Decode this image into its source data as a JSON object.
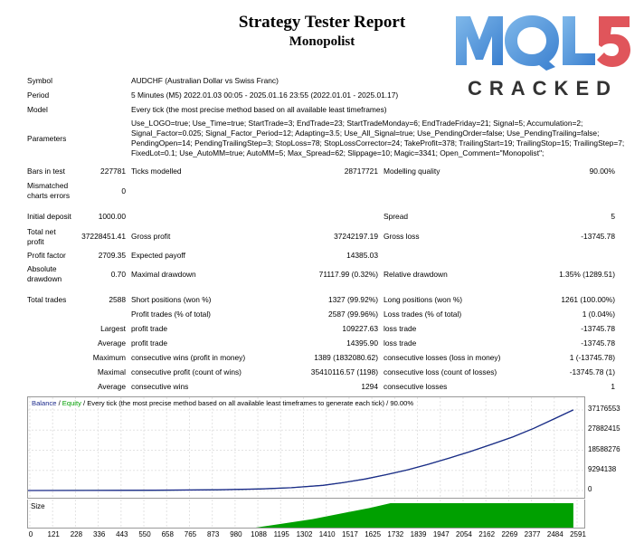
{
  "header": {
    "title": "Strategy Tester Report",
    "subtitle": "Monopolist"
  },
  "logo": {
    "text_top": "MQL5",
    "text_bottom": "CRACKED",
    "color_primary": "#4a90d9",
    "color_accent": "#e0555b",
    "color_dark": "#333333"
  },
  "summary": {
    "symbol_label": "Symbol",
    "symbol_value": "AUDCHF (Australian Dollar vs Swiss Franc)",
    "period_label": "Period",
    "period_value": "5 Minutes (M5) 2022.01.03 00:05 - 2025.01.16 23:55 (2022.01.01 - 2025.01.17)",
    "model_label": "Model",
    "model_value": "Every tick (the most precise method based on all available least timeframes)",
    "parameters_label": "Parameters",
    "parameters_value": "Use_LOGO=true; Use_Time=true; StartTrade=3; EndTrade=23; StartTradeMonday=6; EndTradeFriday=21; Signal=5; Accumulation=2; Signal_Factor=0.025; Signal_Factor_Period=12; Adapting=3.5; Use_All_Signal=true; Use_PendingOrder=false; Use_PendingTrailing=false; PendingOpen=14; PendingTrailingStep=3; StopLoss=78; StopLossCorrector=24; TakeProfit=378; TrailingStart=19; TrailingStop=15; TrailingStep=7; FixedLot=0.1; Use_AutoMM=true; AutoMM=5; Max_Spread=62; Slippage=10; Magic=3341; Open_Comment=\"Monopolist\";"
  },
  "stats": {
    "bars_label": "Bars in test",
    "bars_value": "227781",
    "ticks_label": "Ticks modelled",
    "ticks_value": "28717721",
    "quality_label": "Modelling quality",
    "quality_value": "90.00%",
    "mismatch_label": "Mismatched charts errors",
    "mismatch_value": "0",
    "deposit_label": "Initial deposit",
    "deposit_value": "1000.00",
    "spread_label": "Spread",
    "spread_value": "5",
    "netprofit_label": "Total net profit",
    "netprofit_value": "37228451.41",
    "grossprofit_label": "Gross profit",
    "grossprofit_value": "37242197.19",
    "grossloss_label": "Gross loss",
    "grossloss_value": "-13745.78",
    "pf_label": "Profit factor",
    "pf_value": "2709.35",
    "ep_label": "Expected payoff",
    "ep_value": "14385.03",
    "absdd_label": "Absolute drawdown",
    "absdd_value": "0.70",
    "maxdd_label": "Maximal drawdown",
    "maxdd_value": "71117.99 (0.32%)",
    "reldd_label": "Relative drawdown",
    "reldd_value": "1.35% (1289.51)",
    "trades_label": "Total trades",
    "trades_value": "2588",
    "short_label": "Short positions (won %)",
    "short_value": "1327 (99.92%)",
    "long_label": "Long positions (won %)",
    "long_value": "1261 (100.00%)",
    "pt_label": "Profit trades (% of total)",
    "pt_value": "2587 (99.96%)",
    "lt_label": "Loss trades (% of total)",
    "lt_value": "1 (0.04%)",
    "largest_label": "Largest",
    "largest_pt_label": "profit trade",
    "largest_pt_value": "109227.63",
    "largest_lt_label": "loss trade",
    "largest_lt_value": "-13745.78",
    "average_label": "Average",
    "average_pt_label": "profit trade",
    "average_pt_value": "14395.90",
    "average_lt_label": "loss trade",
    "average_lt_value": "-13745.78",
    "maximum_label": "Maximum",
    "max_cw_label": "consecutive wins (profit in money)",
    "max_cw_value": "1389 (1832080.62)",
    "max_cl_label": "consecutive losses (loss in money)",
    "max_cl_value": "1 (-13745.78)",
    "maximal_label": "Maximal",
    "mxl_cp_label": "consecutive profit (count of wins)",
    "mxl_cp_value": "35410116.57 (1198)",
    "mxl_cl_label": "consecutive loss (count of losses)",
    "mxl_cl_value": "-13745.78 (1)",
    "avg2_label": "Average",
    "avg_cw_label": "consecutive wins",
    "avg_cw_value": "1294",
    "avg_cl_label": "consecutive losses",
    "avg_cl_value": "1"
  },
  "chart_data": {
    "type": "line",
    "legend": {
      "balance": "Balance",
      "sep1": " / ",
      "equity": "Equity",
      "rest": " / Every tick (the most precise method based on all available least timeframes to generate each tick) / 90.00%"
    },
    "y_ticks": [
      "37176553",
      "27882415",
      "18588276",
      "9294138",
      "0"
    ],
    "ylim": [
      0,
      37176553
    ],
    "x_ticks": [
      "0",
      "121",
      "228",
      "336",
      "443",
      "550",
      "658",
      "765",
      "873",
      "980",
      "1088",
      "1195",
      "1302",
      "1410",
      "1517",
      "1625",
      "1732",
      "1839",
      "1947",
      "2054",
      "2162",
      "2269",
      "2377",
      "2484",
      "2591"
    ],
    "xlim": [
      0,
      2640
    ],
    "size_label": "Size",
    "colors": {
      "balance": "#1c2a8c",
      "equity": "#00a000",
      "size": "#00a000"
    },
    "series": [
      {
        "name": "Balance",
        "x": [
          0,
          300,
          600,
          900,
          1100,
          1250,
          1400,
          1500,
          1600,
          1700,
          1800,
          1900,
          2000,
          2100,
          2200,
          2300,
          2400,
          2500,
          2588
        ],
        "y": [
          1000,
          40000,
          130000,
          330000,
          700000,
          1300000,
          2400000,
          3700000,
          5300000,
          7300000,
          9500000,
          12100000,
          15000000,
          18000000,
          21300000,
          24700000,
          28700000,
          33200000,
          37228451
        ]
      }
    ],
    "size_series": {
      "x": [
        0,
        1080,
        1200,
        1350,
        1500,
        1620,
        1720,
        1900,
        2100,
        2300,
        2500,
        2588
      ],
      "y": [
        0,
        0,
        0.15,
        0.35,
        0.6,
        0.8,
        1.0,
        1.0,
        1.0,
        1.0,
        1.0,
        1.0
      ]
    }
  }
}
